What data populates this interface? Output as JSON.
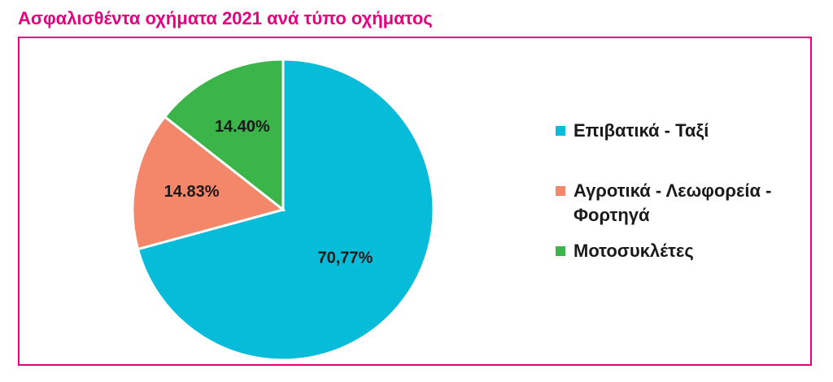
{
  "title": "Ασφαλισθέντα οχήματα 2021 ανά τύπο οχήματος",
  "colors": {
    "title": "#e6007e",
    "frame": "#e6007e"
  },
  "chart_data": {
    "type": "pie",
    "title": "Ασφαλισθέντα οχήματα 2021 ανά τύπο οχήματος",
    "slices": [
      {
        "label": "Επιβατικά - Ταξί",
        "value": 70.77,
        "display": "70,77%",
        "color": "#06bcd8"
      },
      {
        "label": "Αγροτικά - Λεωφορεία - Φορτηγά",
        "value": 14.83,
        "display": "14.83%",
        "color": "#f4866a"
      },
      {
        "label": "Μοτοσυκλέτες",
        "value": 14.4,
        "display": "14.40%",
        "color": "#3bb54a"
      }
    ],
    "legend_position": "right"
  },
  "legend": {
    "items": [
      {
        "label": "Επιβατικά - Ταξί",
        "color": "#06bcd8"
      },
      {
        "label": "Αγροτικά - Λεωφορεία - Φορτηγά",
        "color": "#f4866a"
      },
      {
        "label": "Μοτοσυκλέτες",
        "color": "#3bb54a"
      }
    ]
  }
}
